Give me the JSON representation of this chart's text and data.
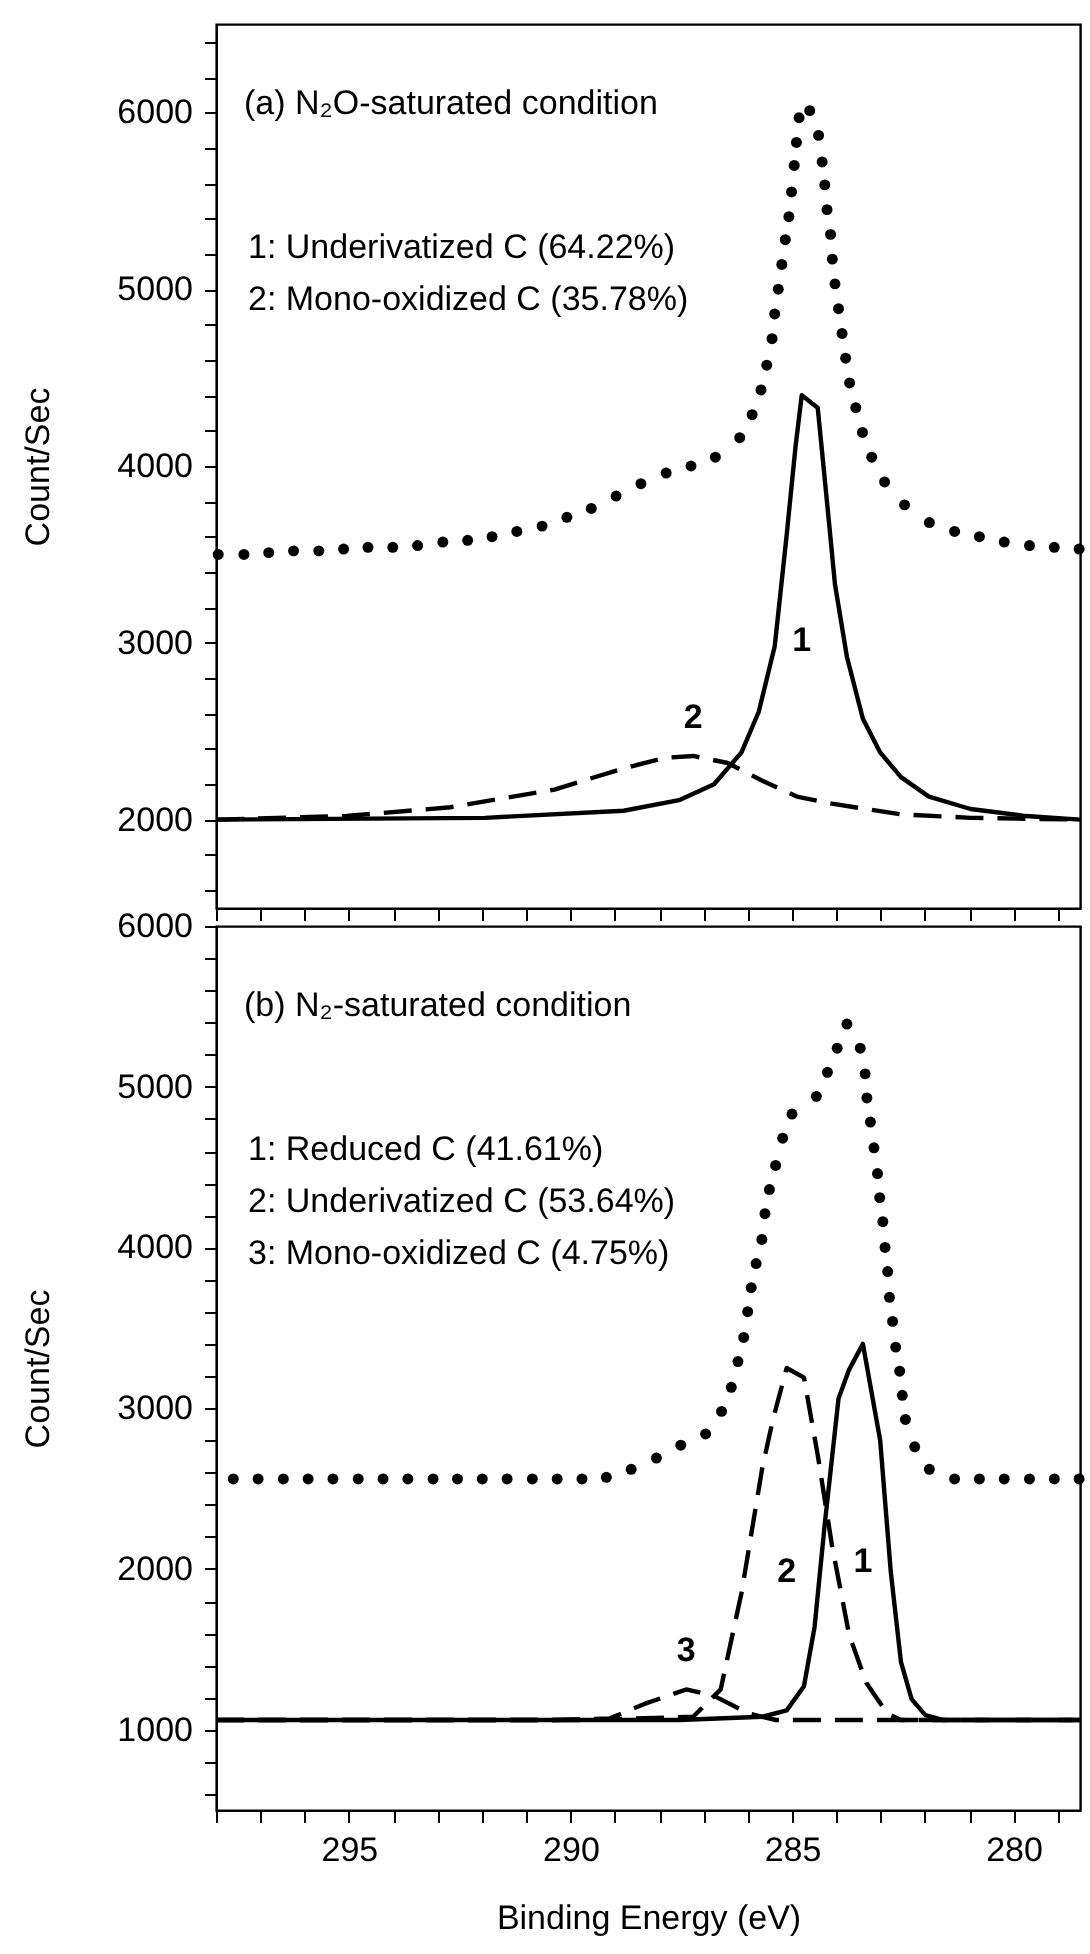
{
  "chart_data": [
    {
      "type": "line",
      "title": "(a) N₂O-saturated condition",
      "ylabel": "Count/Sec",
      "tick_labels": "y",
      "xlim": [
        298,
        278.5
      ],
      "ylim": [
        1500,
        6500
      ],
      "xticks": [
        {
          "value": 298,
          "label": null
        },
        {
          "value": 297,
          "label": null
        },
        {
          "value": 296,
          "label": null
        },
        295,
        {
          "value": 294,
          "label": null
        },
        {
          "value": 293,
          "label": null
        },
        {
          "value": 292,
          "label": null
        },
        {
          "value": 291,
          "label": null
        },
        290,
        {
          "value": 289,
          "label": null
        },
        {
          "value": 288,
          "label": null
        },
        {
          "value": 287,
          "label": null
        },
        {
          "value": 286,
          "label": null
        },
        285,
        {
          "value": 284,
          "label": null
        },
        {
          "value": 283,
          "label": null
        },
        {
          "value": 282,
          "label": null
        },
        {
          "value": 281,
          "label": null
        },
        280,
        {
          "value": 279,
          "label": null
        }
      ],
      "yticks": [
        {
          "value": 1600,
          "label": null
        },
        {
          "value": 1800,
          "label": null
        },
        2000,
        {
          "value": 2200,
          "label": null
        },
        {
          "value": 2400,
          "label": null
        },
        {
          "value": 2600,
          "label": null
        },
        {
          "value": 2800,
          "label": null
        },
        3000,
        {
          "value": 3200,
          "label": null
        },
        {
          "value": 3400,
          "label": null
        },
        {
          "value": 3600,
          "label": null
        },
        {
          "value": 3800,
          "label": null
        },
        4000,
        {
          "value": 4200,
          "label": null
        },
        {
          "value": 4400,
          "label": null
        },
        {
          "value": 4600,
          "label": null
        },
        {
          "value": 4800,
          "label": null
        },
        5000,
        {
          "value": 5200,
          "label": null
        },
        {
          "value": 5400,
          "label": null
        },
        {
          "value": 5600,
          "label": null
        },
        {
          "value": 5800,
          "label": null
        },
        6000,
        {
          "value": 6200,
          "label": null
        },
        {
          "value": 6400,
          "label": null
        }
      ],
      "annotations": [
        "1: Underivatized C (64.22%)",
        "2: Mono-oxidized C (35.78%)"
      ],
      "series": [
        {
          "type": "scatter",
          "marker": "circle",
          "color": "#000000",
          "x": [
            297.95,
            297.37,
            296.81,
            296.25,
            295.68,
            295.12,
            294.57,
            294.01,
            293.45,
            292.88,
            292.32,
            291.77,
            291.21,
            290.64,
            290.08,
            289.53,
            288.97,
            288.41,
            287.84,
            287.28,
            286.73,
            286.18,
            285.9,
            285.7,
            285.57,
            285.45,
            285.39,
            285.31,
            285.23,
            285.15,
            285.07,
            285.01,
            284.95,
            284.9,
            284.84,
            284.6,
            284.4,
            284.32,
            284.26,
            284.21,
            284.13,
            284.09,
            284.03,
            283.95,
            283.87,
            283.79,
            283.7,
            283.56,
            283.41,
            283.2,
            282.91,
            282.46,
            281.9,
            281.33,
            280.77,
            280.21,
            279.64,
            279.08,
            278.52
          ],
          "values": [
            3500,
            3500,
            3510,
            3520,
            3520,
            3530,
            3540,
            3540,
            3550,
            3570,
            3580,
            3600,
            3630,
            3660,
            3710,
            3760,
            3830,
            3900,
            3960,
            4000,
            4050,
            4160,
            4290,
            4430,
            4570,
            4720,
            4860,
            5000,
            5140,
            5280,
            5410,
            5550,
            5700,
            5830,
            5970,
            6010,
            5870,
            5720,
            5590,
            5450,
            5310,
            5170,
            5030,
            4890,
            4750,
            4610,
            4470,
            4330,
            4190,
            4050,
            3910,
            3780,
            3680,
            3630,
            3600,
            3570,
            3550,
            3540,
            3530
          ]
        },
        {
          "type": "line",
          "name": "1",
          "line_style": "solid",
          "color": "#000000",
          "x": [
            298,
            291.93,
            288.8,
            287.55,
            286.76,
            286.14,
            285.75,
            285.39,
            285.12,
            284.92,
            284.78,
            284.42,
            284.18,
            284.03,
            283.76,
            283.4,
            283.01,
            282.54,
            281.91,
            280.97,
            279.72,
            278.5
          ],
          "values": [
            2000,
            2010,
            2050,
            2110,
            2200,
            2380,
            2610,
            2980,
            3610,
            4110,
            4400,
            4330,
            3720,
            3330,
            2920,
            2570,
            2380,
            2240,
            2130,
            2060,
            2020,
            2000
          ]
        },
        {
          "type": "line",
          "name": "2",
          "line_style": "dashed",
          "color": "#000000",
          "x": [
            298,
            295.06,
            292.71,
            290.36,
            288.8,
            287.86,
            287.23,
            286.45,
            285.67,
            284.89,
            284.1,
            282.54,
            280.97,
            278.5
          ],
          "values": [
            2000,
            2020,
            2070,
            2170,
            2290,
            2350,
            2360,
            2320,
            2220,
            2130,
            2090,
            2030,
            2010,
            2000
          ]
        }
      ]
    },
    {
      "type": "line",
      "title": "(b) N₂-saturated condition",
      "xlabel": "Binding Energy (eV)",
      "ylabel": "Count/Sec",
      "xlim": [
        298,
        278.5
      ],
      "ylim": [
        500,
        6000
      ],
      "xticks": [
        {
          "value": 298,
          "label": null
        },
        {
          "value": 297,
          "label": null
        },
        {
          "value": 296,
          "label": null
        },
        295,
        {
          "value": 294,
          "label": null
        },
        {
          "value": 293,
          "label": null
        },
        {
          "value": 292,
          "label": null
        },
        {
          "value": 291,
          "label": null
        },
        290,
        {
          "value": 289,
          "label": null
        },
        {
          "value": 288,
          "label": null
        },
        {
          "value": 287,
          "label": null
        },
        {
          "value": 286,
          "label": null
        },
        285,
        {
          "value": 284,
          "label": null
        },
        {
          "value": 283,
          "label": null
        },
        {
          "value": 282,
          "label": null
        },
        {
          "value": 281,
          "label": null
        },
        280,
        {
          "value": 279,
          "label": null
        }
      ],
      "yticks": [
        {
          "value": 600,
          "label": null
        },
        {
          "value": 800,
          "label": null
        },
        1000,
        {
          "value": 1200,
          "label": null
        },
        {
          "value": 1400,
          "label": null
        },
        {
          "value": 1600,
          "label": null
        },
        {
          "value": 1800,
          "label": null
        },
        2000,
        {
          "value": 2200,
          "label": null
        },
        {
          "value": 2400,
          "label": null
        },
        {
          "value": 2600,
          "label": null
        },
        {
          "value": 2800,
          "label": null
        },
        3000,
        {
          "value": 3200,
          "label": null
        },
        {
          "value": 3400,
          "label": null
        },
        {
          "value": 3600,
          "label": null
        },
        {
          "value": 3800,
          "label": null
        },
        4000,
        {
          "value": 4200,
          "label": null
        },
        {
          "value": 4400,
          "label": null
        },
        {
          "value": 4600,
          "label": null
        },
        {
          "value": 4800,
          "label": null
        },
        5000,
        {
          "value": 5200,
          "label": null
        },
        {
          "value": 5400,
          "label": null
        },
        {
          "value": 5600,
          "label": null
        },
        {
          "value": 5800,
          "label": null
        },
        6000
      ],
      "annotations": [
        "1: Reduced C (41.61%)",
        "2: Underivatized C (53.64%)",
        "3: Mono-oxidized C (4.75%)"
      ],
      "series": [
        {
          "type": "scatter",
          "marker": "circle",
          "color": "#000000",
          "x": [
            297.61,
            297.05,
            296.48,
            295.92,
            295.36,
            294.79,
            294.23,
            293.67,
            293.1,
            292.55,
            291.99,
            291.43,
            290.86,
            290.3,
            289.74,
            289.19,
            288.63,
            288.06,
            287.51,
            286.95,
            286.59,
            286.37,
            286.22,
            286.09,
            286,
            285.92,
            285.81,
            285.68,
            285.61,
            285.51,
            285.37,
            285.21,
            285,
            284.45,
            284.2,
            283.98,
            283.76,
            283.46,
            283.35,
            283.31,
            283.23,
            283.15,
            283.07,
            283.02,
            282.95,
            282.9,
            282.84,
            282.8,
            282.73,
            282.66,
            282.57,
            282.51,
            282.44,
            282.23,
            281.9,
            281.33,
            280.77,
            280.21,
            279.64,
            279.08,
            278.52
          ],
          "values": [
            2560,
            2560,
            2560,
            2560,
            2560,
            2560,
            2560,
            2560,
            2560,
            2560,
            2560,
            2560,
            2560,
            2560,
            2560,
            2570,
            2620,
            2690,
            2770,
            2840,
            2980,
            3130,
            3290,
            3440,
            3600,
            3750,
            3900,
            4050,
            4210,
            4360,
            4510,
            4680,
            4830,
            4940,
            5090,
            5240,
            5390,
            5240,
            5080,
            4930,
            4780,
            4620,
            4460,
            4310,
            4160,
            4000,
            3850,
            3690,
            3540,
            3380,
            3230,
            3080,
            2930,
            2760,
            2620,
            2560,
            2560,
            2560,
            2560,
            2560,
            2560
          ]
        },
        {
          "type": "line",
          "name": "1",
          "line_style": "solid",
          "color": "#000000",
          "x": [
            298,
            287.55,
            285.67,
            285.12,
            284.73,
            284.49,
            284.26,
            283.95,
            283.71,
            283.4,
            283.01,
            282.77,
            282.54,
            282.3,
            281.99,
            281.6,
            278.5
          ],
          "values": [
            1060,
            1060,
            1080,
            1120,
            1270,
            1640,
            2280,
            3060,
            3240,
            3400,
            2800,
            1980,
            1420,
            1190,
            1090,
            1060,
            1060
          ]
        },
        {
          "type": "line",
          "name": "2",
          "line_style": "dashed",
          "color": "#000000",
          "x": [
            298,
            289.58,
            287.23,
            286.61,
            286.14,
            285.67,
            285.43,
            285.12,
            284.73,
            284.42,
            284.1,
            283.71,
            283.32,
            282.85,
            282.54,
            278.5
          ],
          "values": [
            1060,
            1060,
            1080,
            1250,
            1850,
            2630,
            2930,
            3250,
            3190,
            2710,
            2150,
            1590,
            1290,
            1100,
            1060,
            1060
          ]
        },
        {
          "type": "line",
          "name": "3",
          "line_style": "dashed",
          "color": "#000000",
          "x": [
            298,
            290.36,
            289.11,
            288.33,
            287.39,
            286.76,
            285.98,
            285.36,
            278.5
          ],
          "values": [
            1060,
            1060,
            1070,
            1160,
            1250,
            1210,
            1100,
            1060,
            1060
          ]
        }
      ]
    }
  ]
}
